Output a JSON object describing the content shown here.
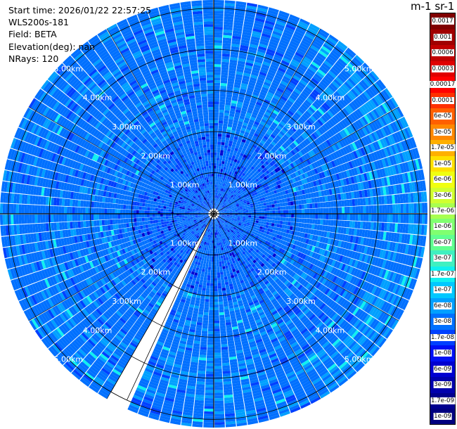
{
  "header": {
    "start_time": "Start time: 2026/01/22 22:57:25",
    "instrument": "WLS200s-181",
    "field": "Field: BETA",
    "elevation": "Elevation(deg): nan",
    "nrays": "NRays: 120"
  },
  "colorbar": {
    "title": "m-1 sr-1",
    "levels": [
      {
        "label": "1e-09",
        "color": "#000080"
      },
      {
        "label": "1.7e-09",
        "color": "#00008f"
      },
      {
        "label": "3e-09",
        "color": "#0000ad"
      },
      {
        "label": "6e-09",
        "color": "#0000d1"
      },
      {
        "label": "1e-08",
        "color": "#0010f5"
      },
      {
        "label": "1.7e-08",
        "color": "#0040ff"
      },
      {
        "label": "3e-08",
        "color": "#0070ff"
      },
      {
        "label": "6e-08",
        "color": "#00a0ff"
      },
      {
        "label": "1e-07",
        "color": "#00c8ff"
      },
      {
        "label": "1.7e-07",
        "color": "#10f0f0"
      },
      {
        "label": "3e-07",
        "color": "#40f0c0"
      },
      {
        "label": "6e-07",
        "color": "#60ff90"
      },
      {
        "label": "1e-06",
        "color": "#80ff70"
      },
      {
        "label": "1.7e-06",
        "color": "#a8ff50"
      },
      {
        "label": "3e-06",
        "color": "#d0ff30"
      },
      {
        "label": "6e-06",
        "color": "#f0ff10"
      },
      {
        "label": "1e-05",
        "color": "#ffe000"
      },
      {
        "label": "1.7e-05",
        "color": "#ffb000"
      },
      {
        "label": "3e-05",
        "color": "#ff8800"
      },
      {
        "label": "6e-05",
        "color": "#ff6000"
      },
      {
        "label": "0.0001",
        "color": "#ff3000"
      },
      {
        "label": "0.00017",
        "color": "#ff0000"
      },
      {
        "label": "0.0003",
        "color": "#e00000"
      },
      {
        "label": "0.0006",
        "color": "#c00000"
      },
      {
        "label": "0.001",
        "color": "#a00000"
      },
      {
        "label": "0.0017",
        "color": "#800000"
      }
    ]
  },
  "chart_data": {
    "type": "heatmap",
    "projection": "polar",
    "range_rings_km": [
      1,
      2,
      3,
      4,
      5
    ],
    "ring_labels": [
      "1.00km",
      "2.00km",
      "3.00km",
      "4.00km",
      "5.00km"
    ],
    "max_range_km": 5.2,
    "n_rays": 120,
    "dominant_level": "3e-08",
    "secondary_levels": [
      "6e-08",
      "1.7e-08",
      "1.7e-07",
      "6e-09"
    ],
    "missing_sector_az_deg": [
      205,
      210
    ]
  }
}
